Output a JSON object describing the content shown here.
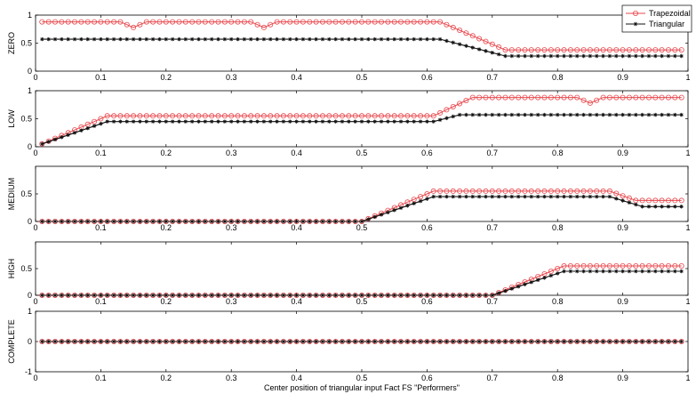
{
  "chart_data": {
    "type": "line",
    "xlabel": "Center position of triangular input Fact FS \"Performers\"",
    "xlim": [
      0,
      1
    ],
    "x_ticks": [
      "0",
      "0.1",
      "0.2",
      "0.3",
      "0.4",
      "0.5",
      "0.6",
      "0.7",
      "0.8",
      "0.9",
      "1"
    ],
    "legend": {
      "placement": "top-right",
      "entries": [
        "Trapezoidal",
        "Triangular"
      ]
    },
    "colors": {
      "Trapezoidal": "#e8474c",
      "Triangular": "#111111"
    },
    "subplots": [
      {
        "ylabel": "ZERO",
        "ylim": [
          0,
          1
        ],
        "y_ticks": [
          "0",
          "0.5",
          "1"
        ],
        "series": [
          {
            "name": "Trapezoidal",
            "points": [
              [
                0.01,
                0.88
              ],
              [
                0.13,
                0.88
              ],
              [
                0.15,
                0.78
              ],
              [
                0.17,
                0.88
              ],
              [
                0.33,
                0.88
              ],
              [
                0.35,
                0.78
              ],
              [
                0.37,
                0.88
              ],
              [
                0.62,
                0.88
              ],
              [
                0.72,
                0.38
              ],
              [
                0.99,
                0.38
              ]
            ]
          },
          {
            "name": "Triangular",
            "points": [
              [
                0.01,
                0.57
              ],
              [
                0.62,
                0.57
              ],
              [
                0.72,
                0.27
              ],
              [
                0.99,
                0.27
              ]
            ]
          }
        ]
      },
      {
        "ylabel": "LOW",
        "ylim": [
          0,
          1
        ],
        "y_ticks": [
          "0",
          "0.5",
          "1"
        ],
        "series": [
          {
            "name": "Trapezoidal",
            "points": [
              [
                0.01,
                0.05
              ],
              [
                0.11,
                0.55
              ],
              [
                0.61,
                0.55
              ],
              [
                0.67,
                0.88
              ],
              [
                0.83,
                0.88
              ],
              [
                0.85,
                0.78
              ],
              [
                0.87,
                0.88
              ],
              [
                0.99,
                0.88
              ]
            ]
          },
          {
            "name": "Triangular",
            "points": [
              [
                0.01,
                0.05
              ],
              [
                0.11,
                0.45
              ],
              [
                0.61,
                0.45
              ],
              [
                0.65,
                0.57
              ],
              [
                0.99,
                0.57
              ]
            ]
          }
        ]
      },
      {
        "ylabel": "MEDIUM",
        "ylim": [
          0,
          1
        ],
        "y_ticks": [
          "0",
          "0.5"
        ],
        "series": [
          {
            "name": "Trapezoidal",
            "points": [
              [
                0.01,
                0
              ],
              [
                0.5,
                0
              ],
              [
                0.61,
                0.55
              ],
              [
                0.88,
                0.55
              ],
              [
                0.92,
                0.38
              ],
              [
                0.99,
                0.38
              ]
            ]
          },
          {
            "name": "Triangular",
            "points": [
              [
                0.01,
                0
              ],
              [
                0.5,
                0
              ],
              [
                0.61,
                0.45
              ],
              [
                0.88,
                0.45
              ],
              [
                0.93,
                0.27
              ],
              [
                0.99,
                0.27
              ]
            ]
          }
        ]
      },
      {
        "ylabel": "HIGH",
        "ylim": [
          0,
          1
        ],
        "y_ticks": [
          "0",
          "0.5"
        ],
        "series": [
          {
            "name": "Trapezoidal",
            "points": [
              [
                0.01,
                0
              ],
              [
                0.7,
                0
              ],
              [
                0.81,
                0.55
              ],
              [
                0.99,
                0.55
              ]
            ]
          },
          {
            "name": "Triangular",
            "points": [
              [
                0.01,
                0
              ],
              [
                0.7,
                0
              ],
              [
                0.81,
                0.45
              ],
              [
                0.99,
                0.45
              ]
            ]
          }
        ]
      },
      {
        "ylabel": "COMPLETE",
        "ylim": [
          -1,
          1
        ],
        "y_ticks": [
          "-1",
          "0",
          "1"
        ],
        "series": [
          {
            "name": "Trapezoidal",
            "points": [
              [
                0.01,
                0
              ],
              [
                0.99,
                0
              ]
            ]
          },
          {
            "name": "Triangular",
            "points": [
              [
                0.01,
                0
              ],
              [
                0.99,
                0
              ]
            ]
          }
        ]
      }
    ]
  }
}
